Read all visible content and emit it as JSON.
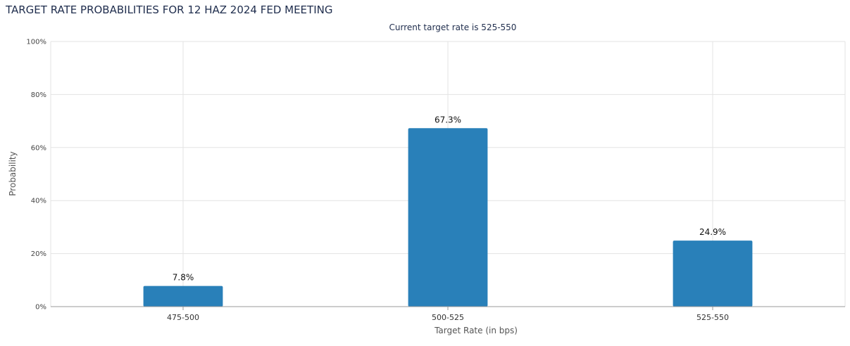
{
  "chart_data": {
    "type": "bar",
    "title": "TARGET RATE PROBABILITIES FOR 12 HAZ 2024 FED MEETING",
    "subtitle": "Current target rate is 525-550",
    "xlabel": "Target Rate (in bps)",
    "ylabel": "Probability",
    "categories": [
      "475-500",
      "500-525",
      "525-550"
    ],
    "values": [
      7.8,
      67.3,
      24.9
    ],
    "value_labels": [
      "7.8%",
      "67.3%",
      "24.9%"
    ],
    "ylim": [
      0,
      100
    ],
    "yticks": [
      "0%",
      "20%",
      "40%",
      "60%",
      "80%",
      "100%"
    ],
    "ytick_values": [
      0,
      20,
      40,
      60,
      80,
      100
    ],
    "grid": true,
    "legend": "none",
    "bar_color": "#2980b9"
  }
}
